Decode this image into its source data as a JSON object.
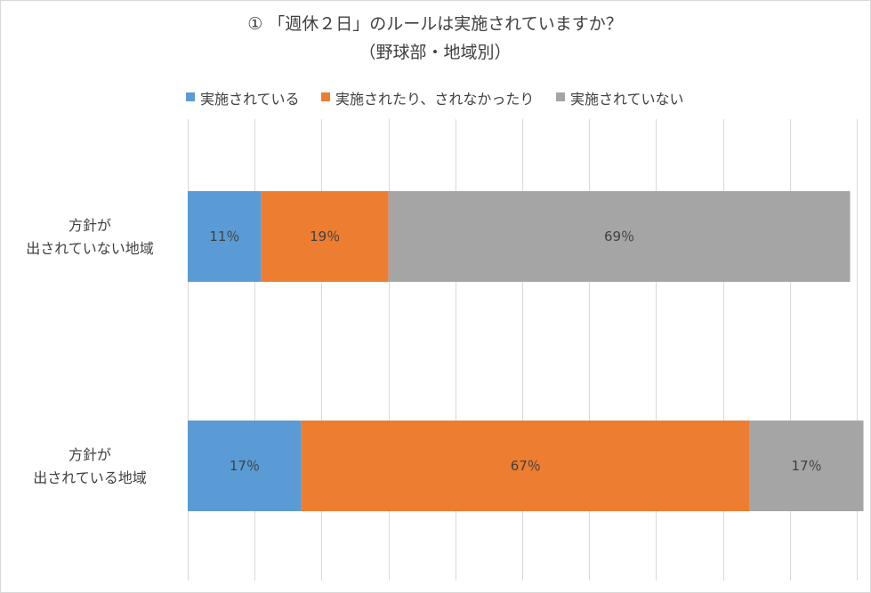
{
  "chart_data": {
    "type": "bar",
    "orientation": "horizontal",
    "stacked": true,
    "title": "① 「週休２日」のルールは実施されていますか？",
    "subtitle": "（野球部・地域別）",
    "categories": [
      [
        "方針が",
        "出されていない地域"
      ],
      [
        "方針が",
        "出されている地域"
      ]
    ],
    "series": [
      {
        "name": "実施されている",
        "color": "#5b9bd5",
        "values": [
          11,
          17
        ],
        "labels": [
          "11％",
          "17％"
        ]
      },
      {
        "name": "実施されたり、されなかったり",
        "color": "#ed7d31",
        "values": [
          19,
          67
        ],
        "labels": [
          "19％",
          "67％"
        ]
      },
      {
        "name": "実施されていない",
        "color": "#a5a5a5",
        "values": [
          69,
          17
        ],
        "labels": [
          "69％",
          "17％"
        ]
      }
    ],
    "xlim": [
      0,
      100
    ],
    "grid": true,
    "legend_position": "top"
  }
}
